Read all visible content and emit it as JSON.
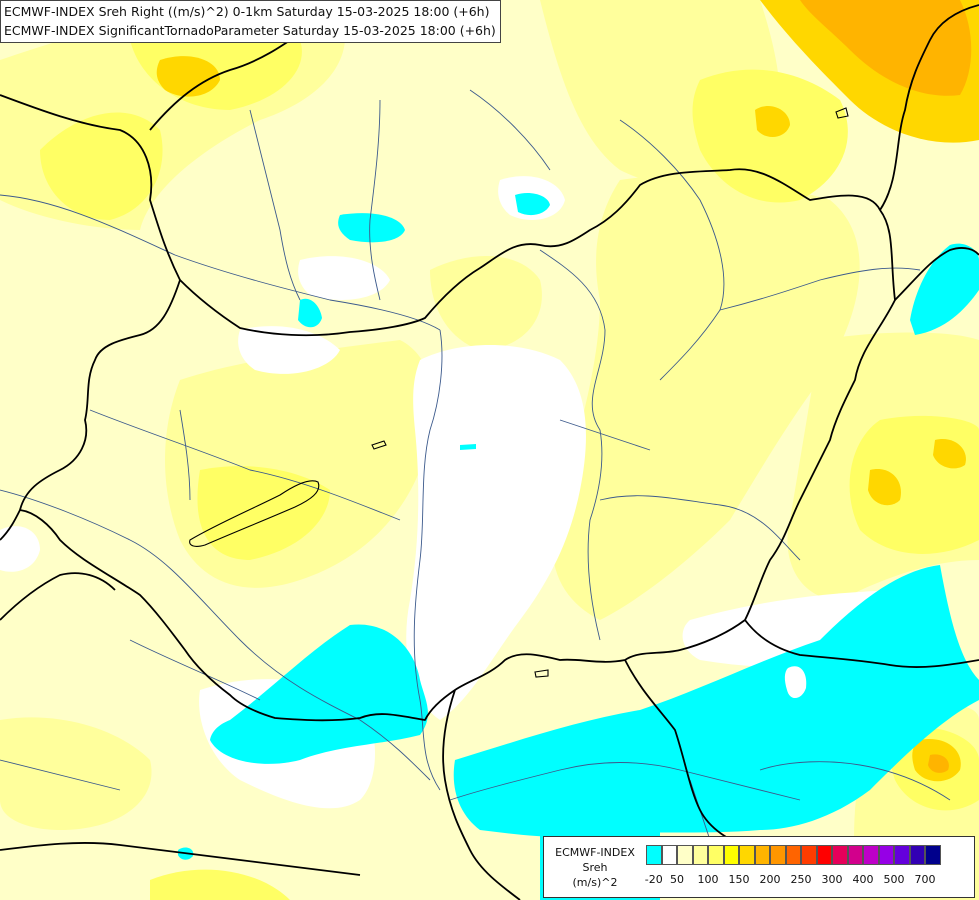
{
  "title": {
    "line1": "ECMWF-INDEX Sreh Right ((m/s)^2) 0-1km Saturday 15-03-2025 18:00 (+6h)",
    "line2": "ECMWF-INDEX SignificantTornadoParameter Saturday 15-03-2025 18:00 (+6h)"
  },
  "legend": {
    "title_line1": "ECMWF-INDEX",
    "title_line2": "Sreh",
    "title_line3": "(m/s)^2",
    "colors": [
      "#00ffff",
      "#ffffff",
      "#ffffc8",
      "#ffff9c",
      "#ffff64",
      "#ffff00",
      "#ffd700",
      "#ffb400",
      "#ff9600",
      "#ff6400",
      "#ff3c00",
      "#ff0000",
      "#e6005a",
      "#d2008c",
      "#be00c8",
      "#9600e6",
      "#6400dc",
      "#3200b4",
      "#00008c"
    ],
    "ticks": [
      "-20",
      "50",
      "100",
      "150",
      "200",
      "250",
      "300",
      "400",
      "500",
      "700"
    ]
  },
  "colors": {
    "background": "#ffffc8",
    "border_line": "#000000",
    "river_line": "#3c5a8c"
  }
}
